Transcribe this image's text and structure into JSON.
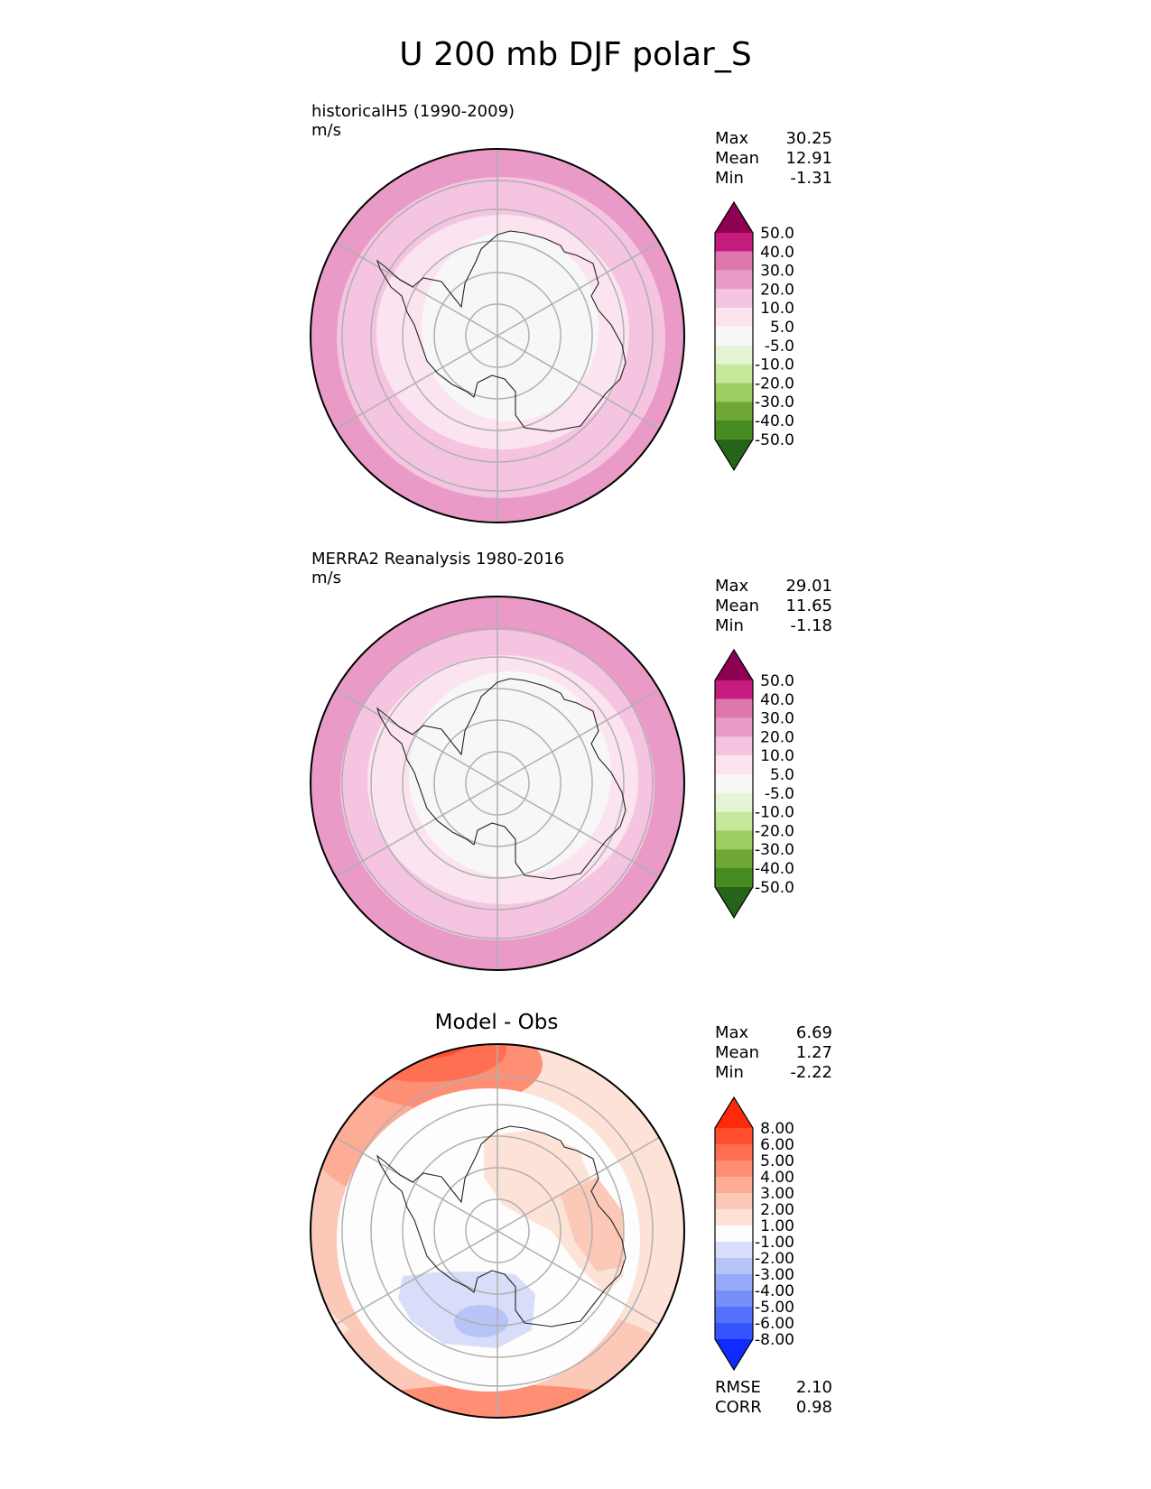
{
  "figure": {
    "title": "U 200 mb DJF polar_S"
  },
  "panels": [
    {
      "label_line1": "historicalH5 (1990-2009)",
      "label_line2": "m/s",
      "center_title": "",
      "stats": [
        {
          "name": "Max",
          "value": "30.25"
        },
        {
          "name": "Mean",
          "value": "12.91"
        },
        {
          "name": "Min",
          "value": "-1.31"
        }
      ],
      "colorbar_ticks": [
        "50.0",
        "40.0",
        "30.0",
        "20.0",
        "10.0",
        "5.0",
        "-5.0",
        "-10.0",
        "-20.0",
        "-30.0",
        "-40.0",
        "-50.0"
      ],
      "colors": [
        "#8e0152",
        "#c51b7d",
        "#de77ae",
        "#e99ac7",
        "#f4c4e0",
        "#fbe4ef",
        "#f7f7f7",
        "#e6f3d4",
        "#c6e89d",
        "#9ccd62",
        "#6ea734",
        "#458b21",
        "#276419"
      ]
    },
    {
      "label_line1": "MERRA2 Reanalysis 1980-2016",
      "label_line2": "m/s",
      "center_title": "",
      "stats": [
        {
          "name": "Max",
          "value": "29.01"
        },
        {
          "name": "Mean",
          "value": "11.65"
        },
        {
          "name": "Min",
          "value": "-1.18"
        }
      ],
      "colorbar_ticks": [
        "50.0",
        "40.0",
        "30.0",
        "20.0",
        "10.0",
        "5.0",
        "-5.0",
        "-10.0",
        "-20.0",
        "-30.0",
        "-40.0",
        "-50.0"
      ],
      "colors": [
        "#8e0152",
        "#c51b7d",
        "#de77ae",
        "#e99ac7",
        "#f4c4e0",
        "#fbe4ef",
        "#f7f7f7",
        "#e6f3d4",
        "#c6e89d",
        "#9ccd62",
        "#6ea734",
        "#458b21",
        "#276419"
      ]
    },
    {
      "label_line1": "",
      "label_line2": "",
      "center_title": "Model - Obs",
      "stats": [
        {
          "name": "Max",
          "value": "6.69"
        },
        {
          "name": "Mean",
          "value": "1.27"
        },
        {
          "name": "Min",
          "value": "-2.22"
        }
      ],
      "colorbar_ticks": [
        "8.00",
        "6.00",
        "5.00",
        "4.00",
        "3.00",
        "2.00",
        "1.00",
        "-1.00",
        "-2.00",
        "-3.00",
        "-4.00",
        "-5.00",
        "-6.00",
        "-8.00"
      ],
      "colors": [
        "#ff2a0a",
        "#ff4d2e",
        "#ff6f52",
        "#fe8e74",
        "#fdac96",
        "#fcc9b8",
        "#fde2d8",
        "#fdfdfd",
        "#d8def9",
        "#b6c4f8",
        "#97a9f8",
        "#778ff8",
        "#5571fb",
        "#3454fd",
        "#0f2bff"
      ],
      "metrics": [
        {
          "name": "RMSE",
          "value": "2.10"
        },
        {
          "name": "CORR",
          "value": "0.98"
        }
      ]
    }
  ],
  "chart_data": {
    "type": "polar contour map",
    "title": "U 200 mb DJF polar_S",
    "region": "Southern polar stereographic",
    "maps": [
      {
        "name": "historicalH5 (1990-2009)",
        "units": "m/s",
        "max": 30.25,
        "mean": 12.91,
        "min": -1.31,
        "levels": [
          -50,
          -40,
          -30,
          -20,
          -10,
          -5,
          5,
          10,
          20,
          30,
          40,
          50
        ],
        "rings_from_pole": [
          {
            "band": "-5 to 5",
            "value": "interior over Antarctica"
          },
          {
            "band": "5 to 10"
          },
          {
            "band": "10 to 20"
          },
          {
            "band": "20 to 30",
            "value": "outer ring"
          }
        ]
      },
      {
        "name": "MERRA2 Reanalysis 1980-2016",
        "units": "m/s",
        "max": 29.01,
        "mean": 11.65,
        "min": -1.18,
        "levels": [
          -50,
          -40,
          -30,
          -20,
          -10,
          -5,
          5,
          10,
          20,
          30,
          40,
          50
        ]
      },
      {
        "name": "Model - Obs",
        "max": 6.69,
        "mean": 1.27,
        "min": -2.22,
        "levels": [
          -8,
          -6,
          -5,
          -4,
          -3,
          -2,
          -1,
          1,
          2,
          3,
          4,
          5,
          6,
          8
        ],
        "rmse": 2.1,
        "corr": 0.98
      }
    ]
  }
}
